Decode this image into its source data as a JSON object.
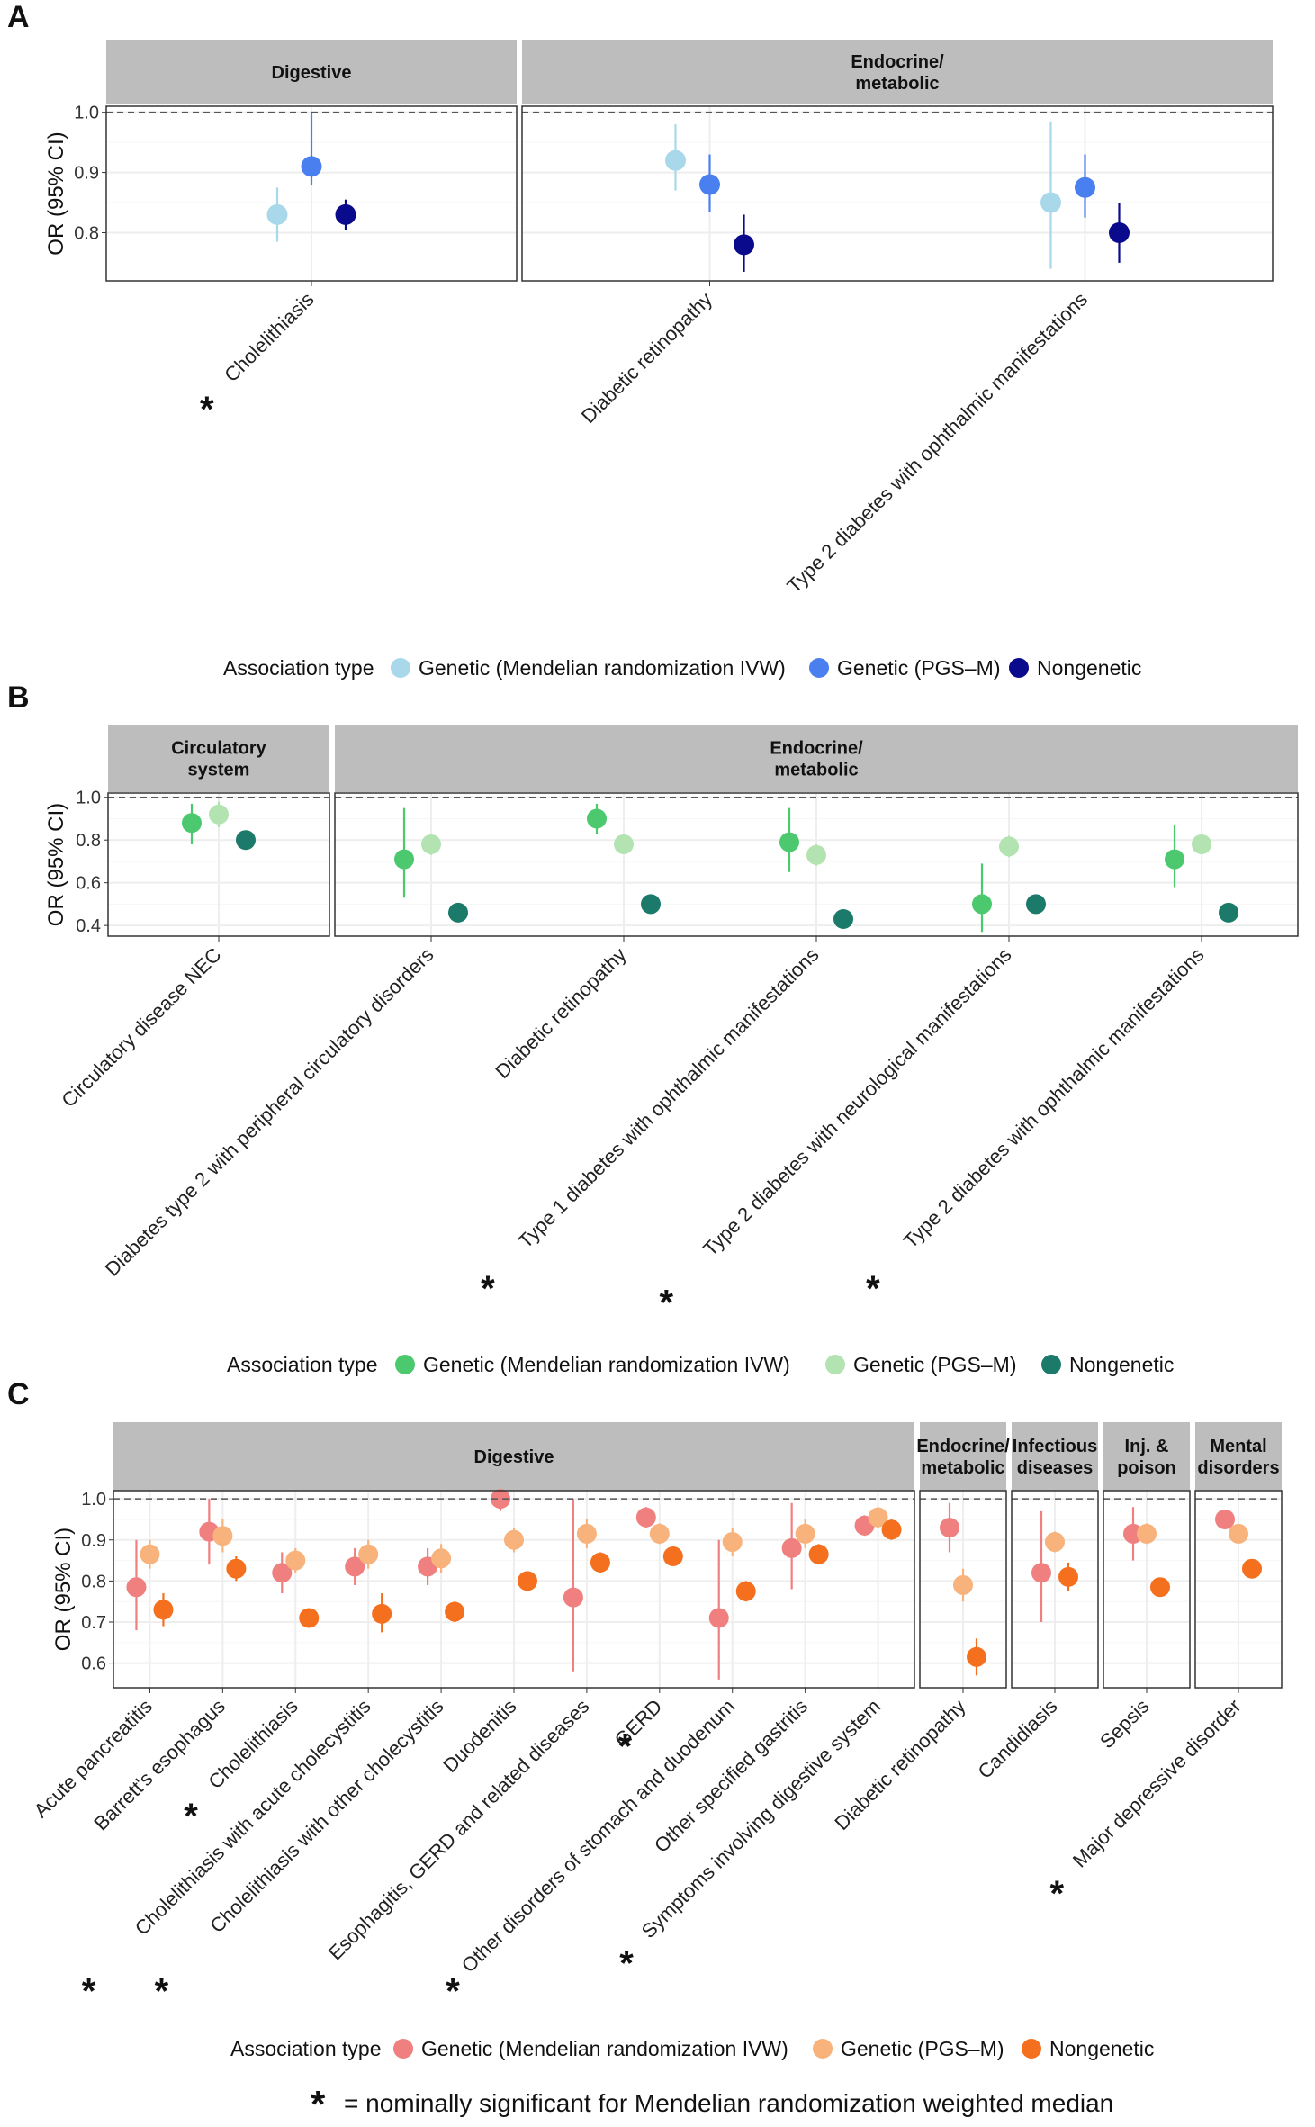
{
  "colors": {
    "strip_fill": "#bdbdbd",
    "grid": "#eeeeee",
    "ref_line": "#555555",
    "a": [
      "#a8d8ea",
      "#4a7ff0",
      "#0a0a8c"
    ],
    "b": [
      "#4cc96e",
      "#b3e3b0",
      "#1b7a6a"
    ],
    "c": [
      "#f07f7f",
      "#f8b27c",
      "#f5701e"
    ]
  },
  "icons": {
    "significance": "asterisk-icon"
  },
  "footnote": {
    "star": "*",
    "text": "= nominally significant for Mendelian randomization weighted median"
  },
  "chart_data": [
    {
      "id": "A",
      "type": "scatter",
      "panel_label": "A",
      "ylabel": "OR (95% CI)",
      "ylim": [
        0.72,
        1.01
      ],
      "yticks": [
        "0.8",
        "0.9",
        "1.0"
      ],
      "yticks_val": [
        0.8,
        0.9,
        1.0
      ],
      "ref_line": 1.0,
      "facets": [
        {
          "label": "Digestive",
          "categories": [
            {
              "name": "Cholelithiasis",
              "star": true,
              "points": [
                {
                  "series": 0,
                  "y": 0.83,
                  "lo": 0.785,
                  "hi": 0.875
                },
                {
                  "series": 1,
                  "y": 0.91,
                  "lo": 0.88,
                  "hi": 1.0
                },
                {
                  "series": 2,
                  "y": 0.83,
                  "lo": 0.805,
                  "hi": 0.855
                }
              ]
            }
          ]
        },
        {
          "label": "Endocrine/\nmetabolic",
          "categories": [
            {
              "name": "Diabetic retinopathy",
              "star": false,
              "points": [
                {
                  "series": 0,
                  "y": 0.92,
                  "lo": 0.87,
                  "hi": 0.98
                },
                {
                  "series": 1,
                  "y": 0.88,
                  "lo": 0.835,
                  "hi": 0.93
                },
                {
                  "series": 2,
                  "y": 0.78,
                  "lo": 0.735,
                  "hi": 0.83
                }
              ]
            },
            {
              "name": "Type 2 diabetes with ophthalmic manifestations",
              "star": false,
              "points": [
                {
                  "series": 0,
                  "y": 0.85,
                  "lo": 0.74,
                  "hi": 0.985
                },
                {
                  "series": 1,
                  "y": 0.875,
                  "lo": 0.825,
                  "hi": 0.93
                },
                {
                  "series": 2,
                  "y": 0.8,
                  "lo": 0.75,
                  "hi": 0.85
                }
              ]
            }
          ]
        }
      ],
      "legend": {
        "title": "Association type",
        "entries": [
          "Genetic (Mendelian randomization IVW)",
          "Genetic (PGS–M)",
          "Nongenetic"
        ]
      }
    },
    {
      "id": "B",
      "type": "scatter",
      "panel_label": "B",
      "ylabel": "OR (95% CI)",
      "ylim": [
        0.35,
        1.02
      ],
      "yticks": [
        "0.4",
        "0.6",
        "0.8",
        "1.0"
      ],
      "yticks_val": [
        0.4,
        0.6,
        0.8,
        1.0
      ],
      "ref_line": 1.0,
      "facets": [
        {
          "label": "Circulatory\nsystem",
          "categories": [
            {
              "name": "Circulatory disease NEC",
              "star": false,
              "points": [
                {
                  "series": 0,
                  "y": 0.88,
                  "lo": 0.78,
                  "hi": 0.97
                },
                {
                  "series": 1,
                  "y": 0.92,
                  "lo": 0.86,
                  "hi": 0.98
                },
                {
                  "series": 2,
                  "y": 0.8,
                  "lo": 0.77,
                  "hi": 0.83
                }
              ]
            }
          ]
        },
        {
          "label": "Endocrine/\nmetabolic",
          "categories": [
            {
              "name": "Diabetes type 2 with peripheral circulatory disorders",
              "star": false,
              "points": [
                {
                  "series": 0,
                  "y": 0.71,
                  "lo": 0.53,
                  "hi": 0.95
                },
                {
                  "series": 1,
                  "y": 0.78,
                  "lo": 0.73,
                  "hi": 0.83
                },
                {
                  "series": 2,
                  "y": 0.46,
                  "lo": 0.43,
                  "hi": 0.5
                }
              ]
            },
            {
              "name": "Diabetic retinopathy",
              "star": false,
              "points": [
                {
                  "series": 0,
                  "y": 0.9,
                  "lo": 0.83,
                  "hi": 0.97
                },
                {
                  "series": 1,
                  "y": 0.78,
                  "lo": 0.74,
                  "hi": 0.82
                },
                {
                  "series": 2,
                  "y": 0.5,
                  "lo": 0.47,
                  "hi": 0.53
                }
              ]
            },
            {
              "name": "Type 1 diabetes with ophthalmic manifestations",
              "star": true,
              "points": [
                {
                  "series": 0,
                  "y": 0.79,
                  "lo": 0.65,
                  "hi": 0.95
                },
                {
                  "series": 1,
                  "y": 0.73,
                  "lo": 0.68,
                  "hi": 0.78
                },
                {
                  "series": 2,
                  "y": 0.43,
                  "lo": 0.4,
                  "hi": 0.47
                }
              ]
            },
            {
              "name": "Type 2 diabetes with neurological manifestations",
              "star": true,
              "points": [
                {
                  "series": 0,
                  "y": 0.5,
                  "lo": 0.37,
                  "hi": 0.69
                },
                {
                  "series": 1,
                  "y": 0.77,
                  "lo": 0.72,
                  "hi": 0.82
                },
                {
                  "series": 2,
                  "y": 0.5,
                  "lo": 0.47,
                  "hi": 0.53
                }
              ]
            },
            {
              "name": "Type 2 diabetes with ophthalmic manifestations",
              "star": true,
              "points": [
                {
                  "series": 0,
                  "y": 0.71,
                  "lo": 0.58,
                  "hi": 0.87
                },
                {
                  "series": 1,
                  "y": 0.78,
                  "lo": 0.74,
                  "hi": 0.82
                },
                {
                  "series": 2,
                  "y": 0.46,
                  "lo": 0.43,
                  "hi": 0.49
                }
              ]
            }
          ]
        }
      ],
      "legend": {
        "title": "Association type",
        "entries": [
          "Genetic (Mendelian randomization IVW)",
          "Genetic (PGS–M)",
          "Nongenetic"
        ]
      }
    },
    {
      "id": "C",
      "type": "scatter",
      "panel_label": "C",
      "ylabel": "OR (95% CI)",
      "ylim": [
        0.54,
        1.02
      ],
      "yticks": [
        "0.6",
        "0.7",
        "0.8",
        "0.9",
        "1.0"
      ],
      "yticks_val": [
        0.6,
        0.7,
        0.8,
        0.9,
        1.0
      ],
      "ref_line": 1.0,
      "facets": [
        {
          "label": "Digestive",
          "categories": [
            {
              "name": "Acute pancreatitis",
              "star": false,
              "points": [
                {
                  "series": 0,
                  "y": 0.785,
                  "lo": 0.68,
                  "hi": 0.9
                },
                {
                  "series": 1,
                  "y": 0.865,
                  "lo": 0.83,
                  "hi": 0.9
                },
                {
                  "series": 2,
                  "y": 0.73,
                  "lo": 0.69,
                  "hi": 0.77
                }
              ]
            },
            {
              "name": "Barrett's esophagus",
              "star": false,
              "points": [
                {
                  "series": 0,
                  "y": 0.92,
                  "lo": 0.84,
                  "hi": 1.0
                },
                {
                  "series": 1,
                  "y": 0.91,
                  "lo": 0.87,
                  "hi": 0.95
                },
                {
                  "series": 2,
                  "y": 0.83,
                  "lo": 0.8,
                  "hi": 0.86
                }
              ]
            },
            {
              "name": "Cholelithiasis",
              "star": true,
              "points": [
                {
                  "series": 0,
                  "y": 0.82,
                  "lo": 0.77,
                  "hi": 0.87
                },
                {
                  "series": 1,
                  "y": 0.85,
                  "lo": 0.82,
                  "hi": 0.88
                },
                {
                  "series": 2,
                  "y": 0.71,
                  "lo": 0.695,
                  "hi": 0.725
                }
              ]
            },
            {
              "name": "Cholelithiasis with acute cholecystitis",
              "star": true,
              "points": [
                {
                  "series": 0,
                  "y": 0.835,
                  "lo": 0.79,
                  "hi": 0.88
                },
                {
                  "series": 1,
                  "y": 0.865,
                  "lo": 0.83,
                  "hi": 0.9
                },
                {
                  "series": 2,
                  "y": 0.72,
                  "lo": 0.675,
                  "hi": 0.77
                }
              ]
            },
            {
              "name": "Cholelithiasis with other cholecystitis",
              "star": true,
              "points": [
                {
                  "series": 0,
                  "y": 0.835,
                  "lo": 0.79,
                  "hi": 0.88
                },
                {
                  "series": 1,
                  "y": 0.855,
                  "lo": 0.82,
                  "hi": 0.89
                },
                {
                  "series": 2,
                  "y": 0.725,
                  "lo": 0.7,
                  "hi": 0.75
                }
              ]
            },
            {
              "name": "Duodenitis",
              "star": false,
              "points": [
                {
                  "series": 0,
                  "y": 1.0,
                  "lo": 0.97,
                  "hi": 1.01
                },
                {
                  "series": 1,
                  "y": 0.9,
                  "lo": 0.87,
                  "hi": 0.93
                },
                {
                  "series": 2,
                  "y": 0.8,
                  "lo": 0.78,
                  "hi": 0.82
                }
              ]
            },
            {
              "name": "Esophagitis, GERD and related diseases",
              "star": false,
              "points": [
                {
                  "series": 0,
                  "y": 0.76,
                  "lo": 0.58,
                  "hi": 1.0
                },
                {
                  "series": 1,
                  "y": 0.915,
                  "lo": 0.88,
                  "hi": 0.95
                },
                {
                  "series": 2,
                  "y": 0.845,
                  "lo": 0.82,
                  "hi": 0.87
                }
              ]
            },
            {
              "name": "GERD",
              "star": true,
              "points": [
                {
                  "series": 0,
                  "y": 0.955,
                  "lo": 0.93,
                  "hi": 0.98
                },
                {
                  "series": 1,
                  "y": 0.915,
                  "lo": 0.89,
                  "hi": 0.94
                },
                {
                  "series": 2,
                  "y": 0.86,
                  "lo": 0.84,
                  "hi": 0.88
                }
              ]
            },
            {
              "name": "Other disorders of stomach and duodenum",
              "star": true,
              "points": [
                {
                  "series": 0,
                  "y": 0.71,
                  "lo": 0.56,
                  "hi": 0.9
                },
                {
                  "series": 1,
                  "y": 0.895,
                  "lo": 0.86,
                  "hi": 0.93
                },
                {
                  "series": 2,
                  "y": 0.775,
                  "lo": 0.75,
                  "hi": 0.8
                }
              ]
            },
            {
              "name": "Other specified gastritis",
              "star": false,
              "points": [
                {
                  "series": 0,
                  "y": 0.88,
                  "lo": 0.78,
                  "hi": 0.99
                },
                {
                  "series": 1,
                  "y": 0.915,
                  "lo": 0.88,
                  "hi": 0.95
                },
                {
                  "series": 2,
                  "y": 0.865,
                  "lo": 0.84,
                  "hi": 0.89
                }
              ]
            },
            {
              "name": "Symptoms involving digestive system",
              "star": true,
              "points": [
                {
                  "series": 0,
                  "y": 0.935,
                  "lo": 0.91,
                  "hi": 0.96
                },
                {
                  "series": 1,
                  "y": 0.955,
                  "lo": 0.93,
                  "hi": 0.98
                },
                {
                  "series": 2,
                  "y": 0.925,
                  "lo": 0.9,
                  "hi": 0.95
                }
              ]
            }
          ]
        },
        {
          "label": "Endocrine/\nmetabolic",
          "categories": [
            {
              "name": "Diabetic retinopathy",
              "star": false,
              "points": [
                {
                  "series": 0,
                  "y": 0.93,
                  "lo": 0.87,
                  "hi": 0.99
                },
                {
                  "series": 1,
                  "y": 0.79,
                  "lo": 0.75,
                  "hi": 0.83
                },
                {
                  "series": 2,
                  "y": 0.615,
                  "lo": 0.57,
                  "hi": 0.66
                }
              ]
            }
          ]
        },
        {
          "label": "Infectious\ndiseases",
          "categories": [
            {
              "name": "Candidiasis",
              "star": false,
              "points": [
                {
                  "series": 0,
                  "y": 0.82,
                  "lo": 0.7,
                  "hi": 0.97
                },
                {
                  "series": 1,
                  "y": 0.895,
                  "lo": 0.87,
                  "hi": 0.92
                },
                {
                  "series": 2,
                  "y": 0.81,
                  "lo": 0.775,
                  "hi": 0.845
                }
              ]
            }
          ]
        },
        {
          "label": "Inj. &\npoison",
          "categories": [
            {
              "name": "Sepsis",
              "star": false,
              "points": [
                {
                  "series": 0,
                  "y": 0.915,
                  "lo": 0.85,
                  "hi": 0.98
                },
                {
                  "series": 1,
                  "y": 0.915,
                  "lo": 0.89,
                  "hi": 0.94
                },
                {
                  "series": 2,
                  "y": 0.785,
                  "lo": 0.77,
                  "hi": 0.8
                }
              ]
            }
          ]
        },
        {
          "label": "Mental\ndisorders",
          "categories": [
            {
              "name": "Major depressive disorder",
              "star": true,
              "points": [
                {
                  "series": 0,
                  "y": 0.95,
                  "lo": 0.93,
                  "hi": 0.97
                },
                {
                  "series": 1,
                  "y": 0.915,
                  "lo": 0.895,
                  "hi": 0.935
                },
                {
                  "series": 2,
                  "y": 0.83,
                  "lo": 0.815,
                  "hi": 0.845
                }
              ]
            }
          ]
        }
      ],
      "legend": {
        "title": "Association type",
        "entries": [
          "Genetic (Mendelian randomization IVW)",
          "Genetic (PGS–M)",
          "Nongenetic"
        ]
      }
    }
  ]
}
